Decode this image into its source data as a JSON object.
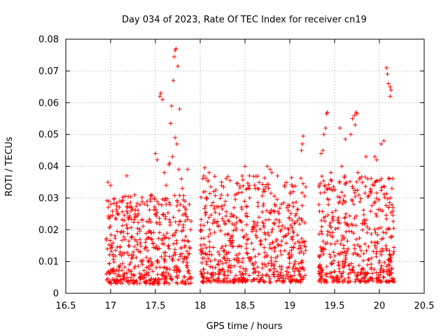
{
  "chart_data": {
    "type": "scatter",
    "title": "Day 034 of 2023, Rate Of TEC Index for receiver cn19",
    "xlabel": "GPS time / hours",
    "ylabel": "ROTI / TECUs",
    "xlim": [
      16.5,
      20.5
    ],
    "ylim": [
      0,
      0.08
    ],
    "xticks": [
      16.5,
      17,
      17.5,
      18,
      18.5,
      19,
      19.5,
      20,
      20.5
    ],
    "xtick_labels": [
      "16.5",
      "17",
      "17.5",
      "18",
      "18.5",
      "19",
      "19.5",
      "20",
      "20.5"
    ],
    "yticks": [
      0,
      0.01,
      0.02,
      0.03,
      0.04,
      0.05,
      0.06,
      0.07,
      0.08
    ],
    "ytick_labels": [
      "0",
      "0.01",
      "0.02",
      "0.03",
      "0.04",
      "0.05",
      "0.06",
      "0.07",
      "0.08"
    ],
    "grid": true,
    "marker": "+",
    "series": [
      {
        "name": "ROTI cn19",
        "color": "#ff0000",
        "points": [
          [
            16.97,
            0.035
          ],
          [
            16.98,
            0.029
          ],
          [
            17.0,
            0.034
          ],
          [
            17.18,
            0.037
          ],
          [
            17.27,
            0.031
          ],
          [
            17.5,
            0.044
          ],
          [
            17.52,
            0.042
          ],
          [
            17.55,
            0.062
          ],
          [
            17.56,
            0.063
          ],
          [
            17.58,
            0.061
          ],
          [
            17.6,
            0.038
          ],
          [
            17.62,
            0.034
          ],
          [
            17.65,
            0.0405
          ],
          [
            17.67,
            0.0535
          ],
          [
            17.68,
            0.059
          ],
          [
            17.7,
            0.067
          ],
          [
            17.71,
            0.0745
          ],
          [
            17.72,
            0.0765
          ],
          [
            17.73,
            0.077
          ],
          [
            17.75,
            0.0715
          ],
          [
            17.77,
            0.058
          ],
          [
            17.62,
            0.028
          ],
          [
            17.66,
            0.041
          ],
          [
            17.69,
            0.043
          ],
          [
            17.72,
            0.049
          ],
          [
            17.74,
            0.047
          ],
          [
            17.76,
            0.039
          ],
          [
            17.79,
            0.036
          ],
          [
            17.8,
            0.033
          ],
          [
            17.83,
            0.029
          ],
          [
            17.86,
            0.039
          ],
          [
            17.62,
            0.0045
          ],
          [
            17.84,
            0.003
          ],
          [
            18.05,
            0.0395
          ],
          [
            18.1,
            0.038
          ],
          [
            18.5,
            0.04
          ],
          [
            18.55,
            0.037
          ],
          [
            18.75,
            0.04
          ],
          [
            18.78,
            0.039
          ],
          [
            18.8,
            0.038
          ],
          [
            19.14,
            0.047
          ],
          [
            19.15,
            0.0495
          ],
          [
            19.13,
            0.045
          ],
          [
            19.35,
            0.044
          ],
          [
            19.37,
            0.045
          ],
          [
            19.38,
            0.05
          ],
          [
            19.4,
            0.052
          ],
          [
            19.41,
            0.0565
          ],
          [
            19.42,
            0.057
          ],
          [
            19.46,
            0.038
          ],
          [
            19.56,
            0.052
          ],
          [
            19.58,
            0.04
          ],
          [
            19.62,
            0.0485
          ],
          [
            19.68,
            0.05
          ],
          [
            19.7,
            0.055
          ],
          [
            19.72,
            0.056
          ],
          [
            19.74,
            0.057
          ],
          [
            19.75,
            0.0565
          ],
          [
            19.73,
            0.053
          ],
          [
            19.76,
            0.038
          ],
          [
            19.85,
            0.043
          ],
          [
            19.87,
            0.036
          ],
          [
            19.95,
            0.043
          ],
          [
            19.97,
            0.042
          ],
          [
            20.02,
            0.047
          ],
          [
            20.05,
            0.048
          ],
          [
            20.08,
            0.071
          ],
          [
            20.09,
            0.069
          ],
          [
            20.1,
            0.066
          ],
          [
            20.12,
            0.065
          ],
          [
            20.13,
            0.064
          ],
          [
            20.12,
            0.062
          ],
          [
            20.11,
            0.036
          ],
          [
            20.14,
            0.033
          ]
        ],
        "bands": [
          {
            "from": 16.95,
            "to": 17.9,
            "y_min": 0.003,
            "y_max": 0.031,
            "count": 520
          },
          {
            "from": 18.0,
            "to": 19.18,
            "y_min": 0.0035,
            "y_max": 0.037,
            "count": 640
          },
          {
            "from": 19.32,
            "to": 20.17,
            "y_min": 0.0035,
            "y_max": 0.037,
            "count": 480
          }
        ]
      }
    ]
  }
}
